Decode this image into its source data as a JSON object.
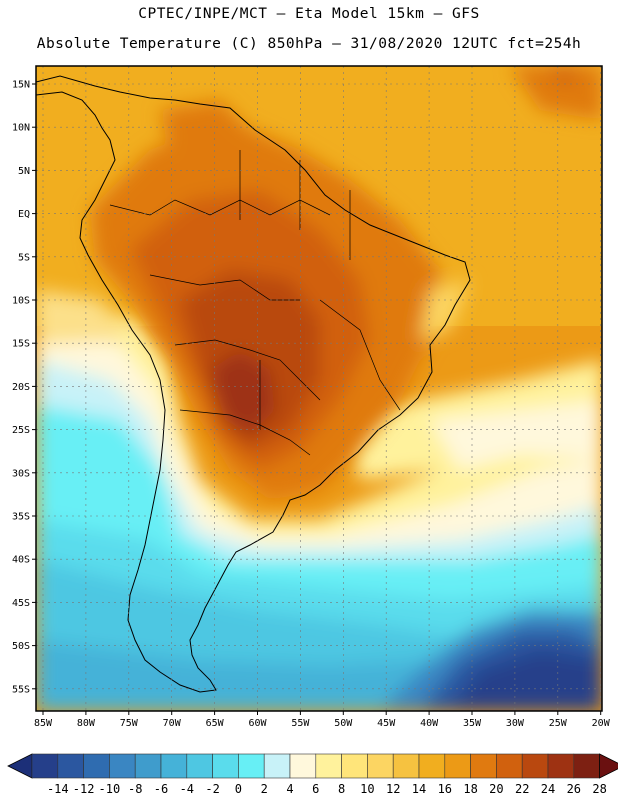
{
  "title_line1": "CPTEC/INPE/MCT —  Eta Model 15km — GFS",
  "title_line2": "Absolute Temperature (C) 850hPa — 31/08/2020 12UTC fct=254h",
  "lat_labels": [
    "15N",
    "10N",
    "5N",
    "EQ",
    "5S",
    "10S",
    "15S",
    "20S",
    "25S",
    "30S",
    "35S",
    "40S",
    "45S",
    "50S",
    "55S"
  ],
  "lon_labels": [
    "85W",
    "80W",
    "75W",
    "70W",
    "65W",
    "60W",
    "55W",
    "50W",
    "45W",
    "40W",
    "35W",
    "30W",
    "25W",
    "20W"
  ],
  "colorbar": {
    "labels": [
      "-14",
      "-12",
      "-10",
      "-8",
      "-6",
      "-4",
      "-2",
      "0",
      "2",
      "4",
      "6",
      "8",
      "10",
      "12",
      "14",
      "16",
      "18",
      "20",
      "22",
      "24",
      "26",
      "28"
    ],
    "colors": [
      "#253f8a",
      "#2b57a0",
      "#2f6cb0",
      "#3a86c2",
      "#3f9ccc",
      "#45b2d8",
      "#4ec7e2",
      "#5adcec",
      "#67eff5",
      "#c8f2f8",
      "#fff8dc",
      "#fff29c",
      "#ffe57a",
      "#fcd562",
      "#f6c240",
      "#f1ae1f",
      "#ec9a16",
      "#e07a10",
      "#d1610e",
      "#b9480f",
      "#9e3212",
      "#7d2012"
    ],
    "low_cap_color": "#1c2f78",
    "high_cap_color": "#6a1010"
  }
}
